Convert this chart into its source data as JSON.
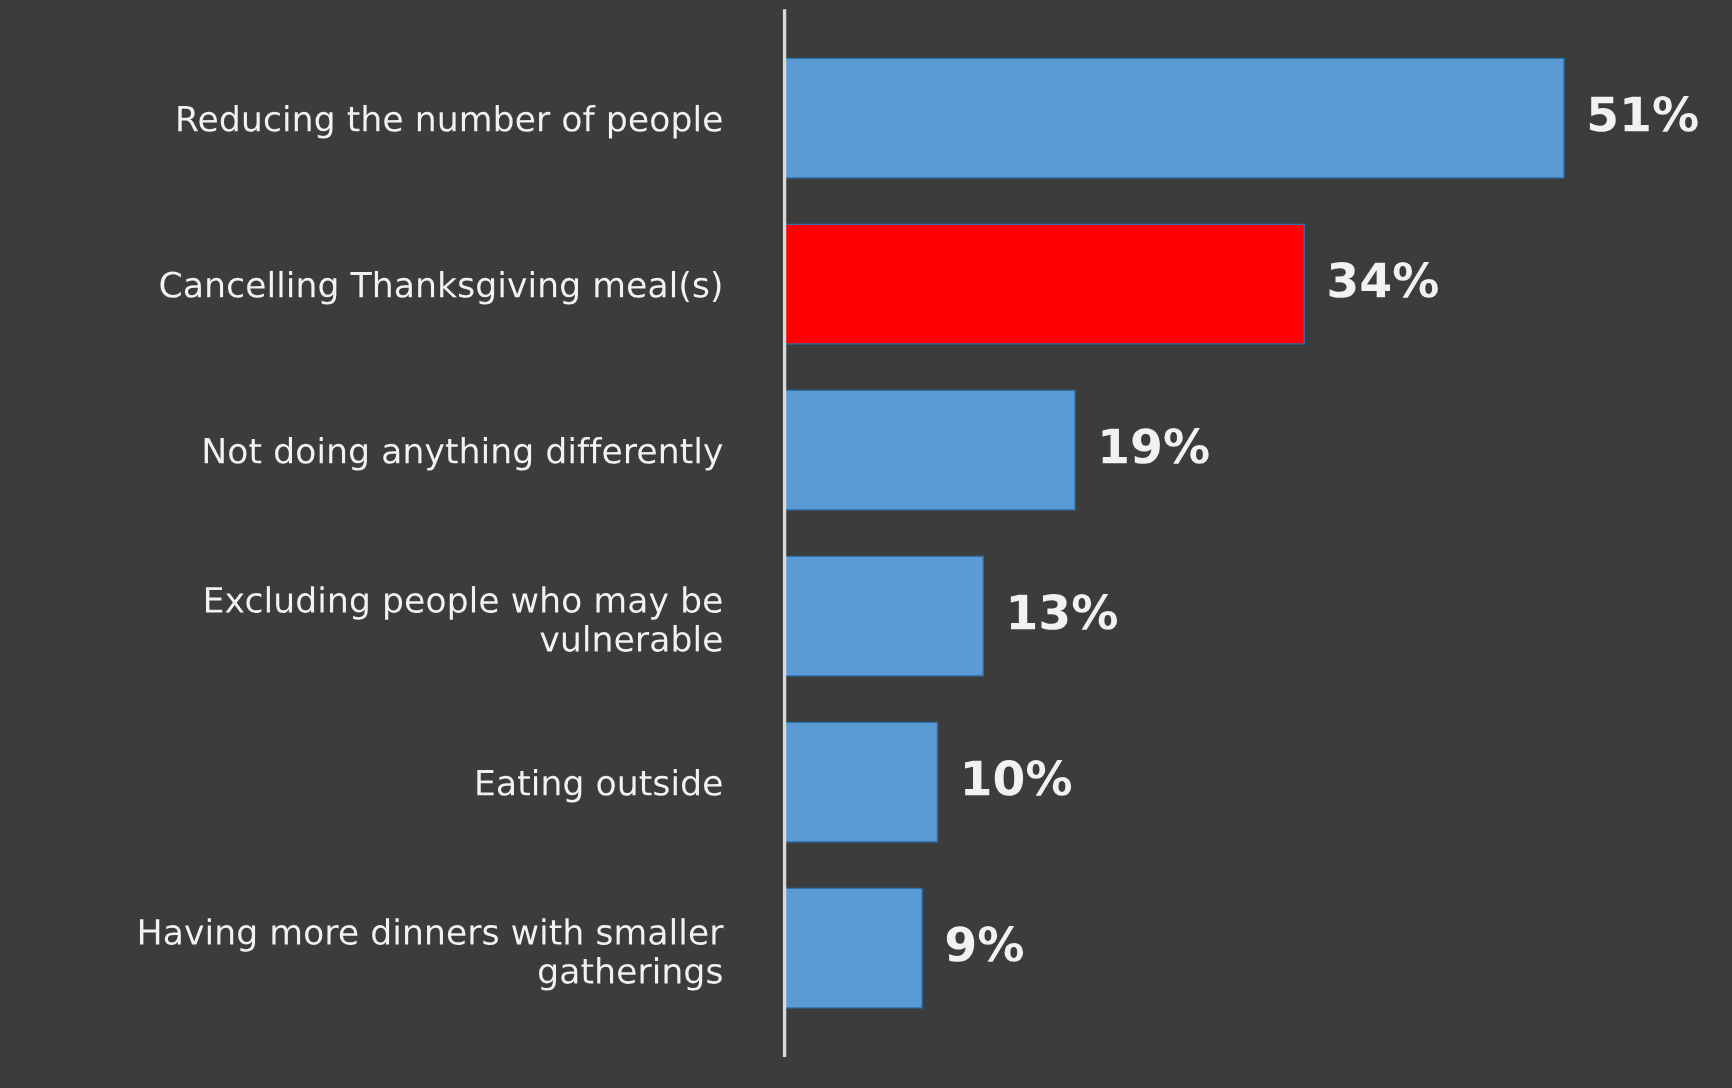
{
  "chart_data": {
    "type": "bar",
    "orientation": "horizontal",
    "categories": [
      "Reducing the number of people",
      "Cancelling Thanksgiving meal(s)",
      "Not doing anything differently",
      "Excluding people who may be\nvulnerable",
      "Eating outside",
      "Having more dinners with smaller\ngatherings"
    ],
    "values": [
      51,
      34,
      19,
      13,
      10,
      9
    ],
    "colors": [
      "#5b9bd5",
      "#ff0000",
      "#5b9bd5",
      "#5b9bd5",
      "#5b9bd5",
      "#5b9bd5"
    ],
    "value_labels": [
      "51%",
      "34%",
      "19%",
      "13%",
      "10%",
      "9%"
    ],
    "grid": false,
    "legend": false
  }
}
